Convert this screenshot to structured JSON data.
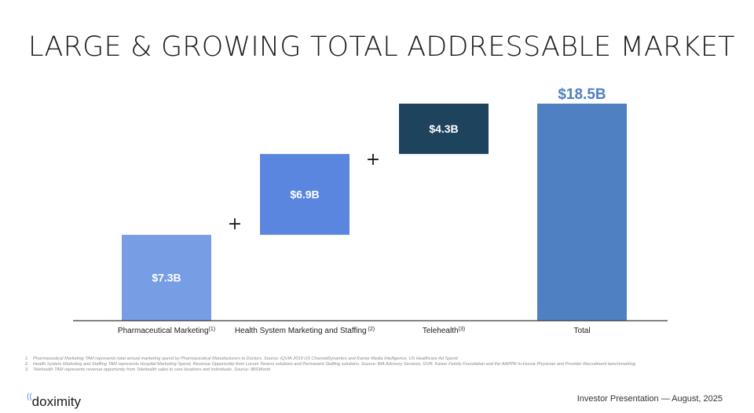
{
  "slide": {
    "title": "LARGE & GROWING TOTAL ADDRESSABLE MARKET",
    "footnotes": [
      {
        "num": "1.",
        "text": "Pharmaceutical Marketing TAM represents total annual marketing spend by Pharmaceutical Manufacturers to Doctors. Source: IQVIA 2019 US ChannelDynamics and Kantar Media Intelligence, US Healthcare Ad Spend"
      },
      {
        "num": "2.",
        "text": "Health System Marketing and Staffing TAM represents Hospital Marketing Spend, Revenue Opportunity from Locum Tenens solutions and Permanent Staffing solutions. Source: BIA Advisory Services, GVR, Kaiser Family Foundation and the AAPPR In-House Physician and Provider Recruitment benchmarking"
      },
      {
        "num": "3.",
        "text": "Telehealth TAM represents revenue opportunity from Telehealth sales to care locations and individuals. Source: IBISWorld"
      }
    ],
    "logo": {
      "wave": "((",
      "text": "doximity"
    },
    "footer": "Investor Presentation — August, 2025"
  },
  "chart_data": {
    "type": "waterfall",
    "title": "",
    "xlabel": "",
    "ylabel": "",
    "units": "USD billions",
    "ylim": [
      0,
      18.5
    ],
    "grid": false,
    "categories": [
      {
        "label": "Pharmaceutical Marketing",
        "sup": "(1)"
      },
      {
        "label": "Health System Marketing and Staffing",
        "sup": " (2)"
      },
      {
        "label": "Telehealth",
        "sup": "(3)"
      },
      {
        "label": "Total",
        "sup": ""
      }
    ],
    "values": [
      7.3,
      6.9,
      4.3,
      18.5
    ],
    "data_labels": [
      "$7.3B",
      "$6.9B",
      "$4.3B",
      "$18.5B"
    ],
    "is_total": [
      false,
      false,
      false,
      true
    ],
    "colors": [
      "#779de4",
      "#5b86e0",
      "#1e435d",
      "#4f80c2"
    ],
    "total_label_color": "#4f80c2",
    "connectors": [
      "+",
      "+"
    ]
  }
}
